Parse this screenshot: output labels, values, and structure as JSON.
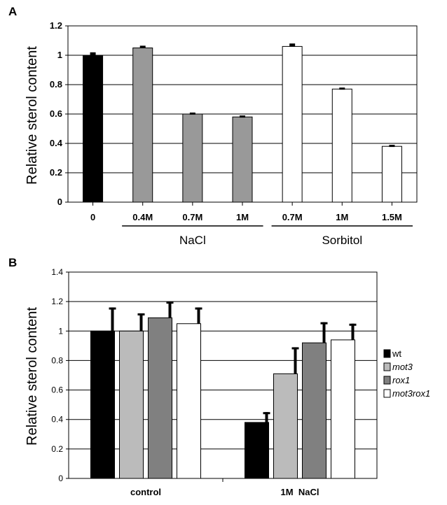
{
  "chart_data": [
    {
      "type": "bar",
      "panel": "A",
      "ylabel": "Relative sterol content",
      "ylim": [
        0,
        1.2
      ],
      "yticks": [
        "0",
        "0.2",
        "0.4",
        "0.6",
        "0.8",
        "1",
        "1.2"
      ],
      "categories": [
        "0",
        "0.4M",
        "0.7M",
        "1M",
        "0.7M",
        "1M",
        "1.5M"
      ],
      "values": [
        1.0,
        1.05,
        0.6,
        0.58,
        1.06,
        0.77,
        0.38
      ],
      "errors": [
        0.02,
        0.015,
        0.01,
        0.01,
        0.02,
        0.01,
        0.01
      ],
      "colors": [
        "#000000",
        "#999999",
        "#999999",
        "#999999",
        "#ffffff",
        "#ffffff",
        "#ffffff"
      ],
      "groups": [
        {
          "label": "NaCl",
          "from": 1,
          "to": 3
        },
        {
          "label": "Sorbitol",
          "from": 4,
          "to": 6
        }
      ],
      "grid": true
    },
    {
      "type": "bar",
      "panel": "B",
      "ylabel": "Relative sterol content",
      "ylim": [
        0,
        1.4
      ],
      "yticks": [
        "0",
        "0.2",
        "0.4",
        "0.6",
        "0.8",
        "1",
        "1.2",
        "1.4"
      ],
      "categories": [
        "control",
        "1M  NaCl"
      ],
      "series": [
        {
          "name": "wt",
          "color": "#000000",
          "values": [
            1.0,
            0.38
          ],
          "errors": [
            0.16,
            0.07
          ]
        },
        {
          "name": "mot3",
          "color": "#bbbbbb",
          "values": [
            1.0,
            0.71
          ],
          "errors": [
            0.12,
            0.18
          ]
        },
        {
          "name": "rox1",
          "color": "#808080",
          "values": [
            1.09,
            0.92
          ],
          "errors": [
            0.11,
            0.14
          ]
        },
        {
          "name": "mot3rox1",
          "color": "#ffffff",
          "values": [
            1.05,
            0.94
          ],
          "errors": [
            0.11,
            0.11
          ]
        }
      ],
      "legend": "right",
      "grid": true
    }
  ]
}
